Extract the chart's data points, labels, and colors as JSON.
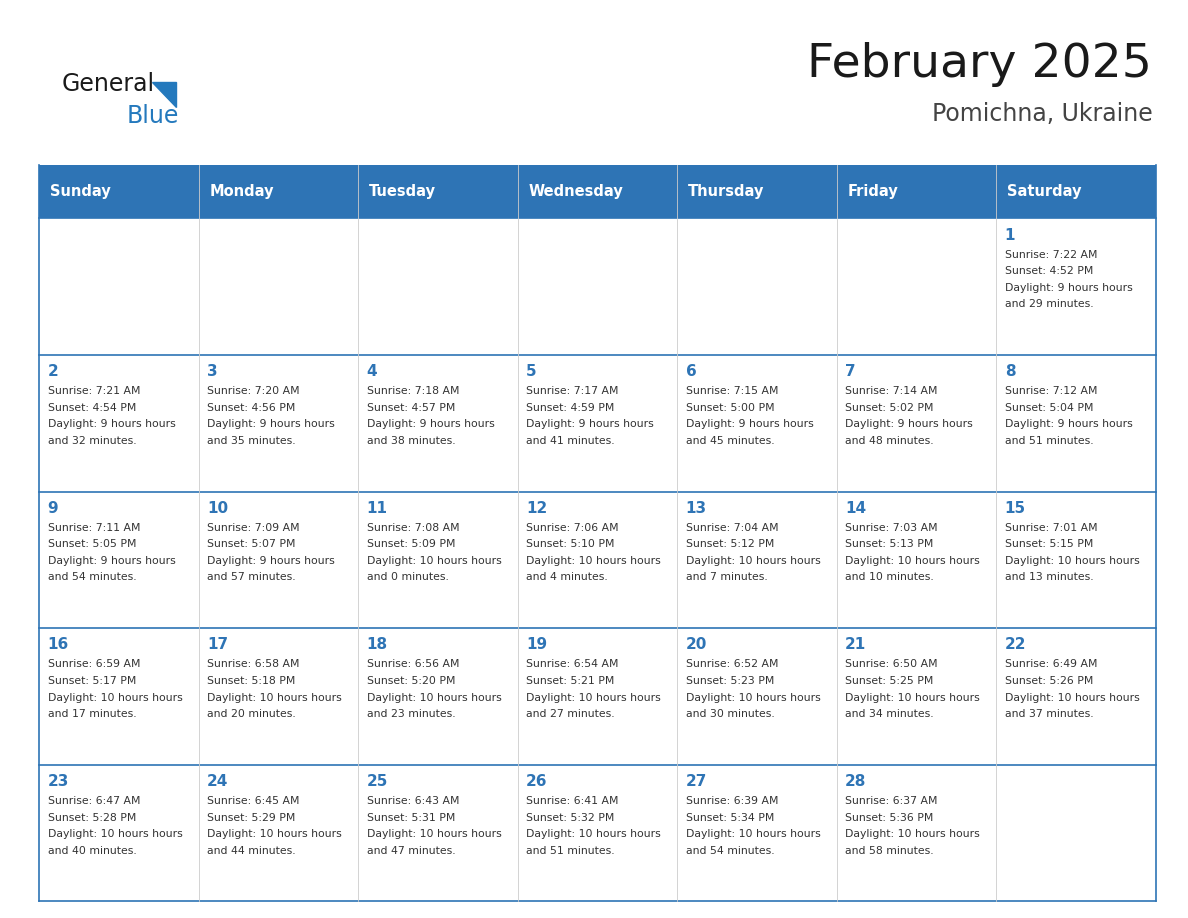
{
  "title": "February 2025",
  "subtitle": "Pomichna, Ukraine",
  "header_bg": "#2E74B5",
  "header_text_color": "#FFFFFF",
  "border_color": "#2E74B5",
  "grid_color": "#CCCCCC",
  "day_names": [
    "Sunday",
    "Monday",
    "Tuesday",
    "Wednesday",
    "Thursday",
    "Friday",
    "Saturday"
  ],
  "title_color": "#1a1a1a",
  "subtitle_color": "#444444",
  "day_num_color": "#2E74B5",
  "cell_text_color": "#333333",
  "logo_general_color": "#1a1a1a",
  "logo_blue_color": "#2479BD",
  "calendar": [
    [
      null,
      null,
      null,
      null,
      null,
      null,
      {
        "day": 1,
        "sunrise": "7:22 AM",
        "sunset": "4:52 PM",
        "daylight": "9 hours and 29 minutes."
      }
    ],
    [
      {
        "day": 2,
        "sunrise": "7:21 AM",
        "sunset": "4:54 PM",
        "daylight": "9 hours and 32 minutes."
      },
      {
        "day": 3,
        "sunrise": "7:20 AM",
        "sunset": "4:56 PM",
        "daylight": "9 hours and 35 minutes."
      },
      {
        "day": 4,
        "sunrise": "7:18 AM",
        "sunset": "4:57 PM",
        "daylight": "9 hours and 38 minutes."
      },
      {
        "day": 5,
        "sunrise": "7:17 AM",
        "sunset": "4:59 PM",
        "daylight": "9 hours and 41 minutes."
      },
      {
        "day": 6,
        "sunrise": "7:15 AM",
        "sunset": "5:00 PM",
        "daylight": "9 hours and 45 minutes."
      },
      {
        "day": 7,
        "sunrise": "7:14 AM",
        "sunset": "5:02 PM",
        "daylight": "9 hours and 48 minutes."
      },
      {
        "day": 8,
        "sunrise": "7:12 AM",
        "sunset": "5:04 PM",
        "daylight": "9 hours and 51 minutes."
      }
    ],
    [
      {
        "day": 9,
        "sunrise": "7:11 AM",
        "sunset": "5:05 PM",
        "daylight": "9 hours and 54 minutes."
      },
      {
        "day": 10,
        "sunrise": "7:09 AM",
        "sunset": "5:07 PM",
        "daylight": "9 hours and 57 minutes."
      },
      {
        "day": 11,
        "sunrise": "7:08 AM",
        "sunset": "5:09 PM",
        "daylight": "10 hours and 0 minutes."
      },
      {
        "day": 12,
        "sunrise": "7:06 AM",
        "sunset": "5:10 PM",
        "daylight": "10 hours and 4 minutes."
      },
      {
        "day": 13,
        "sunrise": "7:04 AM",
        "sunset": "5:12 PM",
        "daylight": "10 hours and 7 minutes."
      },
      {
        "day": 14,
        "sunrise": "7:03 AM",
        "sunset": "5:13 PM",
        "daylight": "10 hours and 10 minutes."
      },
      {
        "day": 15,
        "sunrise": "7:01 AM",
        "sunset": "5:15 PM",
        "daylight": "10 hours and 13 minutes."
      }
    ],
    [
      {
        "day": 16,
        "sunrise": "6:59 AM",
        "sunset": "5:17 PM",
        "daylight": "10 hours and 17 minutes."
      },
      {
        "day": 17,
        "sunrise": "6:58 AM",
        "sunset": "5:18 PM",
        "daylight": "10 hours and 20 minutes."
      },
      {
        "day": 18,
        "sunrise": "6:56 AM",
        "sunset": "5:20 PM",
        "daylight": "10 hours and 23 minutes."
      },
      {
        "day": 19,
        "sunrise": "6:54 AM",
        "sunset": "5:21 PM",
        "daylight": "10 hours and 27 minutes."
      },
      {
        "day": 20,
        "sunrise": "6:52 AM",
        "sunset": "5:23 PM",
        "daylight": "10 hours and 30 minutes."
      },
      {
        "day": 21,
        "sunrise": "6:50 AM",
        "sunset": "5:25 PM",
        "daylight": "10 hours and 34 minutes."
      },
      {
        "day": 22,
        "sunrise": "6:49 AM",
        "sunset": "5:26 PM",
        "daylight": "10 hours and 37 minutes."
      }
    ],
    [
      {
        "day": 23,
        "sunrise": "6:47 AM",
        "sunset": "5:28 PM",
        "daylight": "10 hours and 40 minutes."
      },
      {
        "day": 24,
        "sunrise": "6:45 AM",
        "sunset": "5:29 PM",
        "daylight": "10 hours and 44 minutes."
      },
      {
        "day": 25,
        "sunrise": "6:43 AM",
        "sunset": "5:31 PM",
        "daylight": "10 hours and 47 minutes."
      },
      {
        "day": 26,
        "sunrise": "6:41 AM",
        "sunset": "5:32 PM",
        "daylight": "10 hours and 51 minutes."
      },
      {
        "day": 27,
        "sunrise": "6:39 AM",
        "sunset": "5:34 PM",
        "daylight": "10 hours and 54 minutes."
      },
      {
        "day": 28,
        "sunrise": "6:37 AM",
        "sunset": "5:36 PM",
        "daylight": "10 hours and 58 minutes."
      },
      null
    ]
  ]
}
